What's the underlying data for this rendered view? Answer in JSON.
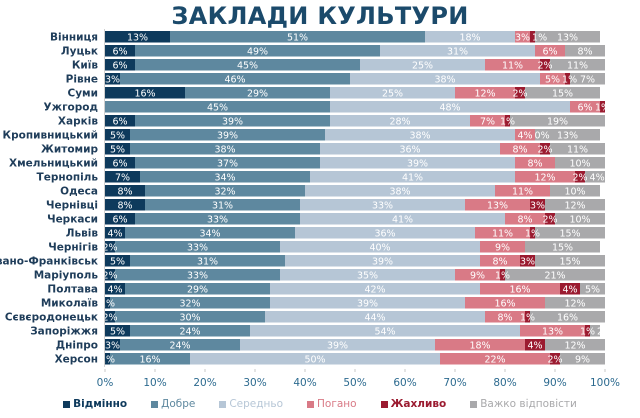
{
  "chart_data": {
    "type": "bar",
    "orientation": "horizontal",
    "stacked": true,
    "percent": true,
    "title": "ЗАКЛАДИ КУЛЬТУРИ",
    "xlabel": "",
    "ylabel": "",
    "xlim": [
      0,
      100
    ],
    "x_ticks": [
      "0%",
      "10%",
      "20%",
      "30%",
      "40%",
      "50%",
      "60%",
      "70%",
      "80%",
      "90%",
      "100%"
    ],
    "grid": false,
    "legend_position": "bottom",
    "categories": [
      "Вінниця",
      "Луцьк",
      "Київ",
      "Рівне",
      "Суми",
      "Ужгород",
      "Харків",
      "Кропивницький",
      "Житомир",
      "Хмельницький",
      "Тернопіль",
      "Одеса",
      "Чернівці",
      "Черкаси",
      "Львів",
      "Чернігів",
      "Івано-Франківськ",
      "Маріуполь",
      "Полтава",
      "Миколаїв",
      "Сєвєродонецьк",
      "Запоріжжя",
      "Дніпро",
      "Херсон"
    ],
    "series": [
      {
        "name": "Відмінно",
        "color": "#0e3a5c",
        "values": [
          13,
          6,
          6,
          3,
          16,
          0,
          6,
          5,
          5,
          6,
          7,
          8,
          8,
          6,
          4,
          2,
          5,
          2,
          4,
          1,
          2,
          5,
          3,
          1
        ]
      },
      {
        "name": "Добре",
        "color": "#5e889f",
        "values": [
          51,
          49,
          45,
          46,
          29,
          45,
          39,
          39,
          38,
          37,
          34,
          32,
          31,
          33,
          34,
          33,
          31,
          33,
          29,
          32,
          30,
          24,
          24,
          16
        ]
      },
      {
        "name": "Середньо",
        "color": "#b6c6d6",
        "values": [
          18,
          31,
          25,
          38,
          25,
          48,
          28,
          38,
          36,
          39,
          41,
          38,
          33,
          41,
          36,
          40,
          39,
          35,
          42,
          39,
          44,
          54,
          39,
          50
        ]
      },
      {
        "name": "Погано",
        "color": "#d97a86",
        "values": [
          3,
          6,
          11,
          5,
          12,
          6,
          7,
          4,
          8,
          8,
          12,
          11,
          13,
          8,
          11,
          9,
          8,
          9,
          16,
          16,
          8,
          13,
          18,
          22
        ]
      },
      {
        "name": "Жахливо",
        "color": "#9b1b30",
        "values": [
          1,
          0,
          2,
          1,
          2,
          1,
          1,
          0,
          2,
          0,
          2,
          0,
          3,
          2,
          1,
          0,
          3,
          1,
          4,
          0,
          1,
          1,
          4,
          2
        ]
      },
      {
        "name": "Важко відповісти",
        "color": "#a9a9ab",
        "values": [
          13,
          8,
          11,
          7,
          15,
          0,
          19,
          13,
          11,
          10,
          4,
          10,
          12,
          10,
          15,
          15,
          15,
          21,
          5,
          12,
          16,
          2,
          12,
          9
        ]
      }
    ],
    "labels_shown": [
      [
        "13%",
        "51%",
        "18%",
        "3%",
        "1%",
        "13%"
      ],
      [
        "6%",
        "49%",
        "31%",
        "6%",
        "",
        "8%"
      ],
      [
        "6%",
        "45%",
        "25%",
        "11%",
        "2%",
        "11%"
      ],
      [
        "3%",
        "46%",
        "38%",
        "5%",
        "1%",
        "7%"
      ],
      [
        "16%",
        "29%",
        "25%",
        "12%",
        "2%",
        "15%"
      ],
      [
        "",
        "45%",
        "48%",
        "6%",
        "1%",
        ""
      ],
      [
        "6%",
        "39%",
        "28%",
        "7%",
        "1%",
        "19%"
      ],
      [
        "5%",
        "39%",
        "38%",
        "4%",
        "0%",
        "13%"
      ],
      [
        "5%",
        "38%",
        "36%",
        "8%",
        "2%",
        "11%"
      ],
      [
        "6%",
        "37%",
        "39%",
        "8%",
        "",
        "10%"
      ],
      [
        "7%",
        "34%",
        "41%",
        "12%",
        "2%",
        "4%"
      ],
      [
        "8%",
        "32%",
        "38%",
        "11%",
        "",
        "10%"
      ],
      [
        "8%",
        "31%",
        "33%",
        "13%",
        "3%",
        "12%"
      ],
      [
        "6%",
        "33%",
        "41%",
        "8%",
        "2%",
        "10%"
      ],
      [
        "4%",
        "34%",
        "36%",
        "11%",
        "1%",
        "15%"
      ],
      [
        "2%",
        "33%",
        "40%",
        "9%",
        "",
        "15%"
      ],
      [
        "5%",
        "31%",
        "39%",
        "8%",
        "3%",
        "15%"
      ],
      [
        "2%",
        "33%",
        "35%",
        "9%",
        "1%",
        "21%"
      ],
      [
        "4%",
        "29%",
        "42%",
        "16%",
        "4%",
        "5%"
      ],
      [
        "1%",
        "32%",
        "39%",
        "16%",
        "",
        "12%"
      ],
      [
        "2%",
        "30%",
        "44%",
        "8%",
        "1%",
        "16%"
      ],
      [
        "5%",
        "24%",
        "54%",
        "13%",
        "1%",
        "2%"
      ],
      [
        "3%",
        "24%",
        "39%",
        "18%",
        "4%",
        "12%"
      ],
      [
        "1%",
        "16%",
        "50%",
        "22%",
        "2%",
        "9%"
      ]
    ]
  }
}
